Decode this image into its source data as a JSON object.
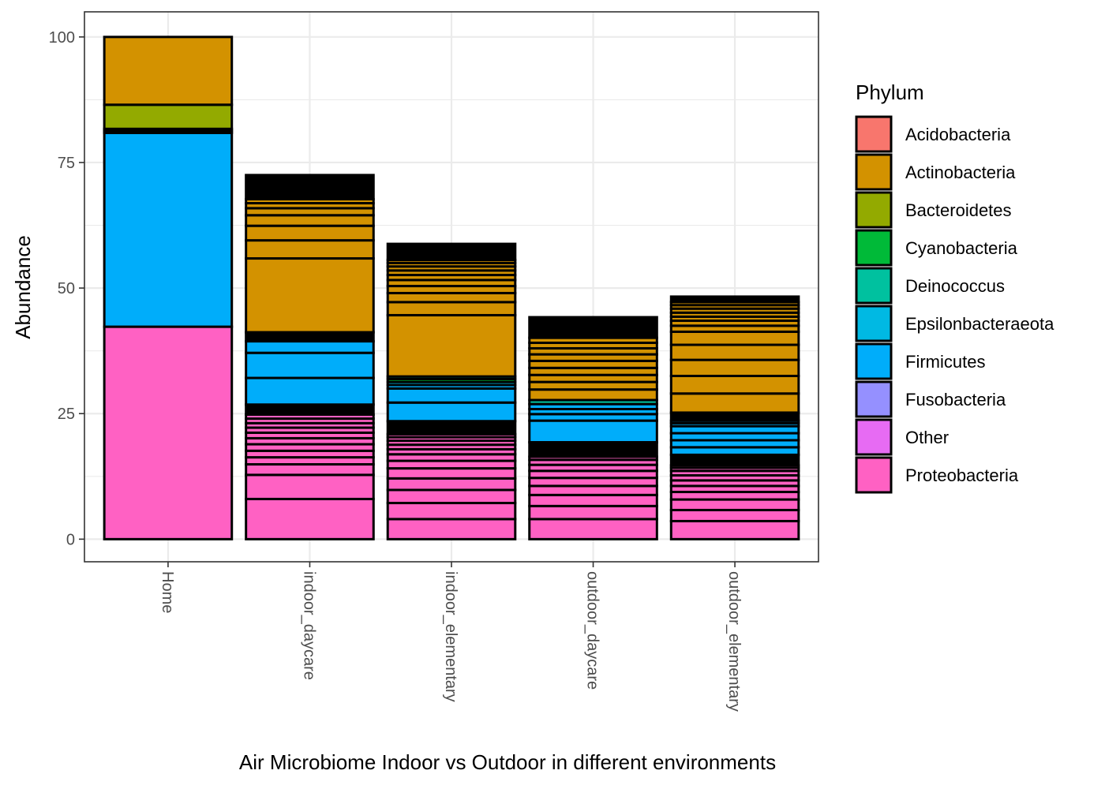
{
  "chart_data": {
    "type": "bar",
    "stacked": true,
    "xlabel": "Air Microbiome Indoor vs Outdoor in different environments",
    "ylabel": "Abundance",
    "ylim": [
      -4.5,
      105
    ],
    "yticks": [
      "0",
      "25",
      "50",
      "75",
      "100"
    ],
    "ytick_values": [
      0,
      25,
      50,
      75,
      100
    ],
    "grid": true,
    "legend_position": "right",
    "categories": [
      "Home",
      "indoor_daycare",
      "indoor_elementary",
      "outdoor_daycare",
      "outdoor_elementary"
    ],
    "legend": {
      "title": "Phylum",
      "entries": [
        {
          "name": "Acidobacteria",
          "color": "#F8766D"
        },
        {
          "name": "Actinobacteria",
          "color": "#D39200"
        },
        {
          "name": "Bacteroidetes",
          "color": "#93AA00"
        },
        {
          "name": "Cyanobacteria",
          "color": "#00BA38"
        },
        {
          "name": "Deinococcus",
          "color": "#00C19F"
        },
        {
          "name": "Epsilonbacteraeota",
          "color": "#00B9E3"
        },
        {
          "name": "Firmicutes",
          "color": "#00ADFA"
        },
        {
          "name": "Fusobacteria",
          "color": "#9590FF"
        },
        {
          "name": "Other",
          "color": "#E76BF3"
        },
        {
          "name": "Proteobacteria",
          "color": "#FF61C3"
        }
      ]
    },
    "stacks": [
      {
        "category": "Home",
        "segments": [
          {
            "phylum": "Proteobacteria",
            "values": [
              42.3
            ]
          },
          {
            "phylum": "Firmicutes",
            "values": [
              38.6
            ]
          },
          {
            "phylum": "Deinococcus",
            "values": [
              0.4
            ]
          },
          {
            "phylum": "Cyanobacteria",
            "values": [
              0.4
            ]
          },
          {
            "phylum": "Bacteroidetes",
            "values": [
              4.8
            ]
          },
          {
            "phylum": "Actinobacteria",
            "values": [
              13.5
            ]
          }
        ]
      },
      {
        "category": "indoor_daycare",
        "segments": [
          {
            "phylum": "Proteobacteria",
            "values": [
              8,
              4.8,
              2.1,
              1.4,
              1.3,
              1.3,
              1.2,
              1.1,
              1.0,
              0.9,
              0.9,
              0.8
            ]
          },
          {
            "phylum": "Other",
            "values": [
              2.0
            ],
            "outlined": true
          },
          {
            "phylum": "Firmicutes",
            "values": [
              5.3,
              5.0,
              2.3
            ]
          },
          {
            "phylum": "Other",
            "values": [
              1.8
            ],
            "outlined": true
          },
          {
            "phylum": "Actinobacteria",
            "values": [
              14.7,
              3.6,
              2.9,
              2.1,
              1.4,
              1.0,
              0.8
            ]
          },
          {
            "phylum": "Other",
            "values": [
              4.8
            ],
            "outlined": true
          }
        ]
      },
      {
        "category": "indoor_elementary",
        "segments": [
          {
            "phylum": "Proteobacteria",
            "values": [
              4.0,
              3.2,
              2.6,
              2.3,
              2.0,
              1.5,
              1.3,
              1.0,
              0.9,
              0.8,
              0.7,
              0.6
            ]
          },
          {
            "phylum": "Other",
            "values": [
              2.6
            ],
            "outlined": true
          },
          {
            "phylum": "Firmicutes",
            "values": [
              3.7,
              2.8,
              0.7
            ]
          },
          {
            "phylum": "Epsilonbacteraeota",
            "values": [
              0.6
            ]
          },
          {
            "phylum": "Cyanobacteria",
            "values": [
              0.6
            ]
          },
          {
            "phylum": "Deinococcus",
            "values": [
              0.5
            ]
          },
          {
            "phylum": "Actinobacteria",
            "values": [
              12.2,
              2.6,
              1.8,
              1.4,
              1.2,
              1.0,
              0.9,
              0.8,
              0.7,
              0.6
            ]
          },
          {
            "phylum": "Other",
            "values": [
              3.2
            ],
            "outlined": true
          }
        ]
      },
      {
        "category": "outdoor_daycare",
        "segments": [
          {
            "phylum": "Proteobacteria",
            "values": [
              4.0,
              2.6,
              2.2,
              1.8,
              1.6,
              1.4,
              1.2,
              1.0,
              0.6
            ]
          },
          {
            "phylum": "Other",
            "values": [
              2.9
            ],
            "outlined": true
          },
          {
            "phylum": "Firmicutes",
            "values": [
              4.3,
              1.3,
              1.0,
              1.0
            ]
          },
          {
            "phylum": "Deinococcus",
            "values": [
              0.8
            ]
          },
          {
            "phylum": "Actinobacteria",
            "values": [
              2.1,
              1.5,
              1.4,
              1.4,
              1.4,
              1.3,
              1.2,
              1.1,
              1.0
            ]
          },
          {
            "phylum": "Other",
            "values": [
              4.1
            ],
            "outlined": true
          }
        ]
      },
      {
        "category": "outdoor_elementary",
        "segments": [
          {
            "phylum": "Proteobacteria",
            "values": [
              3.6,
              2.2,
              2.1,
              1.5,
              1.2,
              1.1,
              1.0,
              0.9,
              0.6,
              0.5
            ]
          },
          {
            "phylum": "Other",
            "values": [
              2.1
            ],
            "outlined": true
          },
          {
            "phylum": "Firmicutes",
            "values": [
              1.5,
              1.4,
              1.4,
              1.4,
              0.6,
              0.5
            ]
          },
          {
            "phylum": "Other",
            "values": [
              1.6
            ],
            "outlined": true
          },
          {
            "phylum": "Actinobacteria",
            "values": [
              3.8,
              3.5,
              3.2,
              3.0,
              2.6,
              1.2,
              1.0,
              0.8,
              0.8,
              0.8,
              0.7,
              0.6
            ]
          },
          {
            "phylum": "Other",
            "values": [
              1.1
            ],
            "outlined": true
          }
        ]
      }
    ]
  }
}
